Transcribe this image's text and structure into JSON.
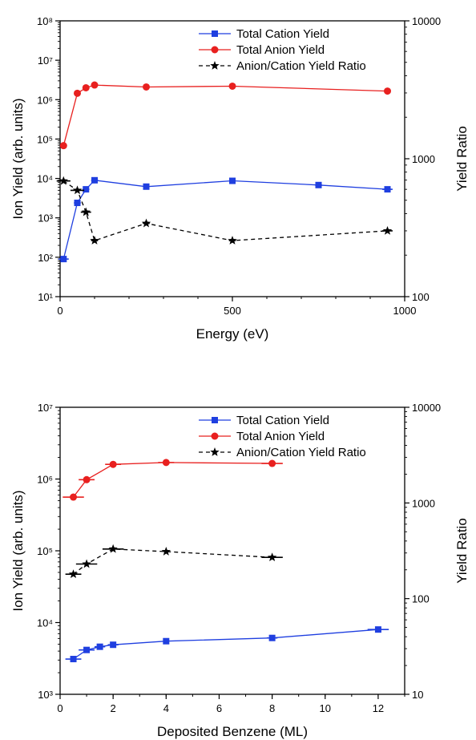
{
  "chart_data": [
    {
      "type": "line",
      "xlabel": "Energy (eV)",
      "ylabel": "Ion Yield (arb. units)",
      "y2label": "Yield Ratio",
      "xlim": [
        0,
        1000
      ],
      "ylim": [
        10,
        100000000
      ],
      "y2lim": [
        100,
        10000
      ],
      "yscale": "log",
      "y2scale": "log",
      "grid": false,
      "legend_position": "top-right",
      "x_ticks": [
        "0",
        "500",
        "1000"
      ],
      "y_ticks": [
        "10¹",
        "10²",
        "10³",
        "10⁴",
        "10⁵",
        "10⁶",
        "10⁷",
        "10⁸"
      ],
      "y2_ticks": [
        "100",
        "1000",
        "10000"
      ],
      "series": [
        {
          "name": "Total Cation Yield",
          "axis": "left",
          "color": "#1f3fe0",
          "marker": "square",
          "line": "solid",
          "x": [
            10,
            50,
            75,
            100,
            250,
            500,
            750,
            950
          ],
          "y": [
            90,
            2400,
            5300,
            9000,
            6200,
            8700,
            6800,
            5300
          ],
          "xerr": [
            15,
            10,
            10,
            10,
            0,
            0,
            10,
            15
          ]
        },
        {
          "name": "Total Anion Yield",
          "axis": "left",
          "color": "#e8201f",
          "marker": "circle",
          "line": "solid",
          "x": [
            10,
            50,
            75,
            100,
            250,
            500,
            950
          ],
          "y": [
            68000,
            1450000,
            2000000,
            2350000,
            2100000,
            2200000,
            1650000
          ],
          "xerr": [
            0,
            0,
            0,
            0,
            0,
            0,
            0
          ]
        },
        {
          "name": "Anion/Cation Yield Ratio",
          "axis": "right",
          "color": "#000000",
          "marker": "star",
          "line": "dashed",
          "x": [
            10,
            50,
            75,
            100,
            250,
            500,
            950
          ],
          "y": [
            690,
            590,
            410,
            255,
            340,
            255,
            300
          ],
          "xerr": [
            20,
            20,
            15,
            10,
            10,
            10,
            15
          ]
        }
      ]
    },
    {
      "type": "line",
      "xlabel": "Deposited Benzene (ML)",
      "ylabel": "Ion Yield (arb. units)",
      "y2label": "Yield Ratio",
      "xlim": [
        0,
        13
      ],
      "ylim": [
        1000,
        10000000
      ],
      "y2lim": [
        10,
        10000
      ],
      "yscale": "log",
      "y2scale": "log",
      "grid": false,
      "legend_position": "top-right",
      "x_ticks": [
        "0",
        "2",
        "4",
        "6",
        "8",
        "10",
        "12"
      ],
      "y_ticks": [
        "10³",
        "10⁴",
        "10⁵",
        "10⁶",
        "10⁷"
      ],
      "y2_ticks": [
        "10",
        "100",
        "1000",
        "10000"
      ],
      "series": [
        {
          "name": "Total Cation Yield",
          "axis": "left",
          "color": "#1f3fe0",
          "marker": "square",
          "line": "solid",
          "x": [
            0.5,
            1,
            1.5,
            2,
            4,
            8,
            12
          ],
          "y": [
            3100,
            4150,
            4600,
            4900,
            5500,
            6100,
            8000
          ],
          "xerr": [
            0.3,
            0.3,
            0.2,
            0.2,
            0,
            0.2,
            0.4
          ]
        },
        {
          "name": "Total Anion Yield",
          "axis": "left",
          "color": "#e8201f",
          "marker": "circle",
          "line": "solid",
          "x": [
            0.5,
            1,
            2,
            4,
            8
          ],
          "y": [
            560000,
            980000,
            1600000,
            1700000,
            1650000
          ],
          "xerr": [
            0.4,
            0.3,
            0.3,
            0.3,
            0.4
          ]
        },
        {
          "name": "Anion/Cation Yield Ratio",
          "axis": "right",
          "color": "#000000",
          "marker": "star",
          "line": "dashed",
          "x": [
            0.5,
            1,
            2,
            4,
            8
          ],
          "y": [
            180,
            230,
            330,
            310,
            270
          ],
          "xerr": [
            0.3,
            0.4,
            0.4,
            0,
            0.4
          ]
        }
      ]
    }
  ]
}
